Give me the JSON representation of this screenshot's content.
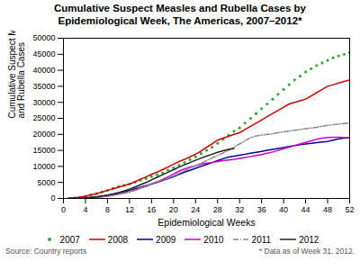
{
  "chart_data": {
    "type": "line",
    "title": "Cumulative Suspect Measles and Rubella Cases by\nEpidemiological Week, The Americas, 2007–2012*",
    "xlabel": "Epidemiological Weeks",
    "ylabel": "Cumulative Suspect Measles\nand Rubella Cases",
    "annotations": [
      "Source: Country reports",
      "* Data as of Week 31, 2012."
    ],
    "xlim": [
      0,
      52
    ],
    "ylim": [
      0,
      50000
    ],
    "xticks": [
      0,
      4,
      8,
      12,
      16,
      20,
      24,
      28,
      32,
      36,
      40,
      44,
      48,
      52
    ],
    "yticks": [
      0,
      5000,
      10000,
      15000,
      20000,
      25000,
      30000,
      35000,
      40000,
      45000,
      50000
    ],
    "grid": false,
    "legend": "bottom",
    "x": [
      1,
      2,
      3,
      4,
      5,
      6,
      7,
      8,
      9,
      10,
      11,
      12,
      13,
      14,
      15,
      16,
      17,
      18,
      19,
      20,
      21,
      22,
      23,
      24,
      25,
      26,
      27,
      28,
      29,
      30,
      31,
      32,
      33,
      34,
      35,
      36,
      37,
      38,
      39,
      40,
      41,
      42,
      43,
      44,
      45,
      46,
      47,
      48,
      49,
      50,
      51,
      52
    ],
    "series": [
      {
        "name": "2007",
        "type": "scatter",
        "marker": "point",
        "color": "#33aa33",
        "values": [
          50,
          150,
          300,
          700,
          1100,
          1500,
          2000,
          2500,
          3100,
          3700,
          4100,
          4500,
          5100,
          5700,
          6200,
          6800,
          7400,
          8000,
          8800,
          9600,
          10400,
          11200,
          12100,
          13000,
          14000,
          15000,
          16000,
          17200,
          18500,
          19800,
          21000,
          22000,
          23500,
          25000,
          26500,
          28000,
          29500,
          31000,
          32500,
          34000,
          35500,
          37000,
          38200,
          39500,
          40500,
          41500,
          42300,
          43100,
          43900,
          44500,
          45000,
          45500
        ]
      },
      {
        "name": "2008",
        "type": "line",
        "line_style": "solid",
        "color": "#cc0000",
        "values": [
          50,
          200,
          400,
          700,
          1100,
          1500,
          2000,
          2500,
          3000,
          3500,
          4000,
          4500,
          5200,
          6000,
          6700,
          7500,
          8200,
          9000,
          9800,
          10700,
          11500,
          12200,
          13000,
          13800,
          14800,
          16000,
          17000,
          18200,
          18800,
          19400,
          20000,
          20500,
          21500,
          22500,
          23500,
          24500,
          25500,
          26500,
          27500,
          28500,
          29500,
          30000,
          30500,
          31000,
          32000,
          33000,
          34000,
          35000,
          35500,
          36000,
          36500,
          37000
        ]
      },
      {
        "name": "2009",
        "type": "line",
        "line_style": "solid",
        "color": "#000099",
        "values": [
          20,
          60,
          120,
          200,
          350,
          500,
          700,
          900,
          1200,
          1600,
          2000,
          2500,
          3000,
          3500,
          4000,
          4500,
          5000,
          5600,
          6200,
          6800,
          7500,
          8200,
          8800,
          9400,
          10000,
          10600,
          11200,
          11800,
          12400,
          12900,
          13200,
          13500,
          13800,
          14100,
          14400,
          14700,
          15000,
          15300,
          15600,
          15900,
          16200,
          16500,
          16800,
          17000,
          17200,
          17400,
          17600,
          17800,
          18200,
          18600,
          18800,
          19000
        ]
      },
      {
        "name": "2010",
        "type": "line",
        "line_style": "solid",
        "color": "#cc00cc",
        "values": [
          10,
          30,
          70,
          130,
          250,
          380,
          550,
          750,
          1000,
          1300,
          1700,
          2100,
          2600,
          3200,
          3800,
          4500,
          5200,
          5900,
          6700,
          7600,
          8500,
          9200,
          9800,
          10200,
          10700,
          11000,
          11200,
          11500,
          11800,
          12000,
          12200,
          12500,
          12800,
          13100,
          13400,
          13700,
          14100,
          14500,
          15000,
          15500,
          16000,
          16500,
          17000,
          17500,
          18000,
          18500,
          18800,
          19000,
          19100,
          19100,
          19000,
          19000
        ]
      },
      {
        "name": "2011",
        "type": "line",
        "line_style": "dashdot",
        "color": "#888888",
        "values": [
          10,
          25,
          60,
          120,
          220,
          350,
          520,
          750,
          1000,
          1350,
          1700,
          2200,
          2700,
          3300,
          3900,
          4500,
          5100,
          5700,
          6300,
          7000,
          7800,
          8600,
          9400,
          10200,
          11000,
          11800,
          12600,
          13400,
          14200,
          15000,
          16000,
          17000,
          18000,
          19000,
          19500,
          19800,
          20000,
          20200,
          20500,
          20800,
          21100,
          21300,
          21500,
          21800,
          22000,
          22200,
          22500,
          22800,
          23000,
          23200,
          23400,
          23500
        ]
      },
      {
        "name": "2012",
        "type": "line",
        "line_style": "solid",
        "color": "#222222",
        "values": [
          10,
          30,
          80,
          160,
          300,
          500,
          750,
          1050,
          1400,
          1800,
          2300,
          2900,
          3600,
          4300,
          5000,
          5800,
          6600,
          7400,
          8200,
          9000,
          9800,
          10500,
          11200,
          11900,
          12600,
          13200,
          13800,
          14400,
          14900,
          15300,
          15600,
          null,
          null,
          null,
          null,
          null,
          null,
          null,
          null,
          null,
          null,
          null,
          null,
          null,
          null,
          null,
          null,
          null,
          null,
          null,
          null,
          null
        ]
      }
    ]
  }
}
